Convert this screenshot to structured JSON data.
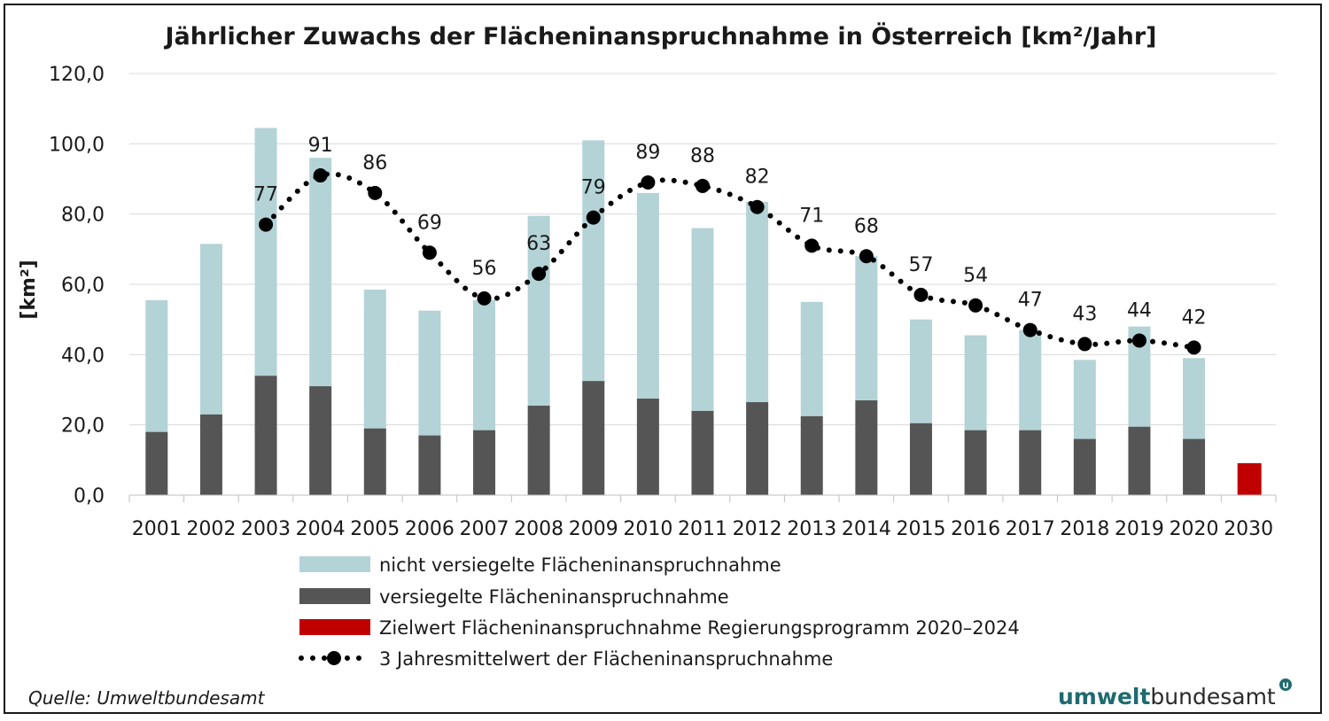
{
  "chart_data": {
    "type": "bar",
    "title": "Jährlicher Zuwachs der Flächeninanspruchnahme in Österreich [km²/Jahr]",
    "ylabel": "[km²]",
    "xlabel": "",
    "ylim": [
      0,
      120
    ],
    "ytick_step": 20,
    "ytick_decimals": 1,
    "decimal_separator": ",",
    "grid": true,
    "legend_position": "bottom",
    "categories": [
      "2001",
      "2002",
      "2003",
      "2004",
      "2005",
      "2006",
      "2007",
      "2008",
      "2009",
      "2010",
      "2011",
      "2012",
      "2013",
      "2014",
      "2015",
      "2016",
      "2017",
      "2018",
      "2019",
      "2020",
      "2030"
    ],
    "series": [
      {
        "name": "versiegelte Flächeninanspruchnahme",
        "kind": "stacked-bar",
        "color": "#555555",
        "values": [
          18,
          23,
          34,
          31,
          19,
          17,
          18.5,
          25.5,
          32.5,
          27.5,
          24,
          26.5,
          22.5,
          27,
          20.5,
          18.5,
          18.5,
          16,
          19.5,
          16,
          null
        ]
      },
      {
        "name": "nicht versiegelte Flächeninanspruchnahme",
        "kind": "stacked-bar",
        "color": "#b3d3d6",
        "values": [
          37.5,
          48.5,
          70.5,
          65,
          39.5,
          35.5,
          37,
          54,
          68.5,
          58.5,
          52,
          57,
          32.5,
          41,
          29.5,
          27,
          28.5,
          22.5,
          28.5,
          23,
          null
        ]
      },
      {
        "name": "Zielwert Flächeninanspruchnahme Regierungsprogramm 2020–2024",
        "kind": "bar",
        "color": "#c00000",
        "values": [
          null,
          null,
          null,
          null,
          null,
          null,
          null,
          null,
          null,
          null,
          null,
          null,
          null,
          null,
          null,
          null,
          null,
          null,
          null,
          null,
          9.1
        ]
      },
      {
        "name": "3 Jahresmittelwert der Flächeninanspruchnahme",
        "kind": "dotted-line",
        "color": "#000000",
        "values": [
          null,
          null,
          77,
          91,
          86,
          69,
          56,
          63,
          79,
          89,
          88,
          82,
          71,
          68,
          57,
          54,
          47,
          43,
          44,
          42,
          null
        ],
        "data_labels": [
          "",
          "",
          "77",
          "91",
          "86",
          "69",
          "56",
          "63",
          "79",
          "89",
          "88",
          "82",
          "71",
          "68",
          "57",
          "54",
          "47",
          "43",
          "44",
          "42",
          ""
        ]
      }
    ]
  },
  "legend_order": [
    1,
    0,
    2,
    3
  ],
  "footer": {
    "source": "Quelle: Umweltbundesamt",
    "logo_part1": "umwelt",
    "logo_part2": "bundesamt",
    "logo_mark": "U"
  }
}
